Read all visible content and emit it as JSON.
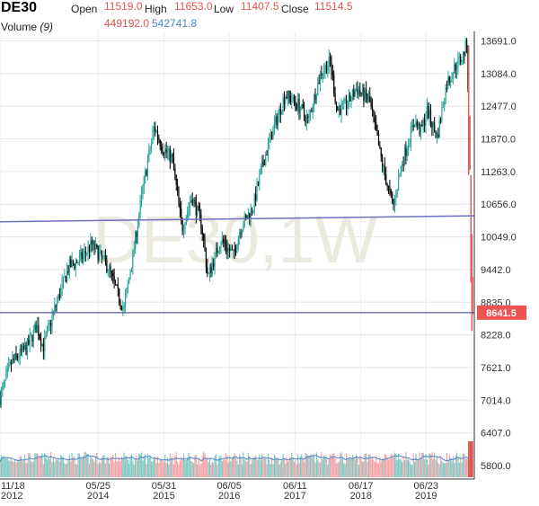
{
  "header": {
    "symbol": "DE30",
    "open_label": "Open",
    "open_value": "11519.0",
    "high_label": "High",
    "high_value": "11653.0",
    "low_label": "Low",
    "low_value": "11407.5",
    "close_label": "Close",
    "close_value": "11514.5",
    "volume_label": "Volume",
    "volume_period": "(9)",
    "volume_value": "449192.0",
    "volume_ma_value": "542741.8"
  },
  "watermark": "DE30,1W",
  "price_tag": "8641.5",
  "chart_data": {
    "type": "candlestick",
    "interval": "1W",
    "ylim": [
      5800,
      13900
    ],
    "y_ticks": [
      "13691.0",
      "13084.0",
      "12477.0",
      "11870.0",
      "11263.0",
      "10656.0",
      "10049.0",
      "9442.0",
      "8835.0",
      "8228.0",
      "7621.0",
      "7014.0",
      "6407.0",
      "5800.0"
    ],
    "x_ticks": [
      {
        "date": "11/18",
        "year": "2012"
      },
      {
        "date": "05/25",
        "year": "2014"
      },
      {
        "date": "05/31",
        "year": "2015"
      },
      {
        "date": "06/05",
        "year": "2016"
      },
      {
        "date": "06/11",
        "year": "2017"
      },
      {
        "date": "06/17",
        "year": "2018"
      },
      {
        "date": "06/23",
        "year": "2019"
      }
    ],
    "price_path": [
      [
        2012.88,
        7050
      ],
      [
        2013.05,
        7700
      ],
      [
        2013.3,
        8000
      ],
      [
        2013.45,
        8400
      ],
      [
        2013.55,
        8000
      ],
      [
        2013.75,
        8800
      ],
      [
        2013.95,
        9500
      ],
      [
        2014.1,
        9600
      ],
      [
        2014.3,
        9900
      ],
      [
        2014.55,
        9500
      ],
      [
        2014.7,
        9000
      ],
      [
        2014.8,
        8700
      ],
      [
        2014.95,
        9800
      ],
      [
        2015.1,
        11000
      ],
      [
        2015.27,
        12100
      ],
      [
        2015.4,
        11700
      ],
      [
        2015.55,
        11500
      ],
      [
        2015.7,
        10200
      ],
      [
        2015.85,
        10800
      ],
      [
        2016.0,
        10300
      ],
      [
        2016.1,
        9300
      ],
      [
        2016.3,
        10000
      ],
      [
        2016.5,
        9700
      ],
      [
        2016.6,
        10200
      ],
      [
        2016.8,
        10600
      ],
      [
        2016.95,
        11400
      ],
      [
        2017.1,
        12000
      ],
      [
        2017.3,
        12700
      ],
      [
        2017.5,
        12500
      ],
      [
        2017.65,
        12200
      ],
      [
        2017.85,
        13100
      ],
      [
        2018.0,
        13300
      ],
      [
        2018.1,
        12400
      ],
      [
        2018.25,
        12500
      ],
      [
        2018.4,
        12800
      ],
      [
        2018.6,
        12600
      ],
      [
        2018.8,
        11400
      ],
      [
        2018.97,
        10600
      ],
      [
        2019.1,
        11400
      ],
      [
        2019.3,
        12200
      ],
      [
        2019.4,
        12000
      ],
      [
        2019.5,
        12400
      ],
      [
        2019.65,
        11900
      ],
      [
        2019.8,
        12900
      ],
      [
        2019.95,
        13250
      ],
      [
        2020.05,
        13400
      ],
      [
        2020.12,
        13700
      ],
      [
        2020.15,
        11200
      ],
      [
        2020.18,
        9000
      ],
      [
        2020.2,
        8641.5
      ]
    ],
    "horizontal_lines": [
      {
        "price_start": 10330,
        "price_end": 10440,
        "color": "#6f6fc0"
      },
      {
        "price": 8641.5,
        "color": "#5a5aa8"
      }
    ],
    "candle_up_color": "#26a69a",
    "candle_down_color": "#000000",
    "crash_color": "#ef5350",
    "volume_up_color": "#80c9c2",
    "volume_down_color": "#f4a3a8",
    "volume_ma_color": "#4a86c5",
    "grid": true
  }
}
